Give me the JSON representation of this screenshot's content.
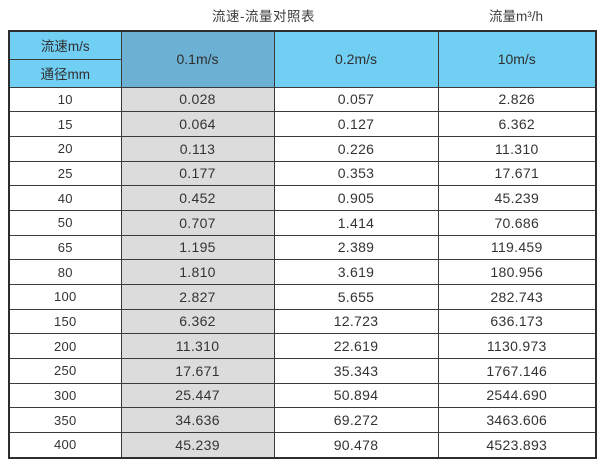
{
  "captions": {
    "title": "流速-流量对照表",
    "unit": "流量m³/h"
  },
  "table": {
    "header": {
      "velocity_label": "流速m/s",
      "diameter_label": "通径mm",
      "columns": [
        "0.1m/s",
        "0.2m/s",
        "10m/s"
      ]
    },
    "rows": [
      {
        "dn": "10",
        "v01": "0.028",
        "v02": "0.057",
        "v10": "2.826"
      },
      {
        "dn": "15",
        "v01": "0.064",
        "v02": "0.127",
        "v10": "6.362"
      },
      {
        "dn": "20",
        "v01": "0.113",
        "v02": "0.226",
        "v10": "11.310"
      },
      {
        "dn": "25",
        "v01": "0.177",
        "v02": "0.353",
        "v10": "17.671"
      },
      {
        "dn": "40",
        "v01": "0.452",
        "v02": "0.905",
        "v10": "45.239"
      },
      {
        "dn": "50",
        "v01": "0.707",
        "v02": "1.414",
        "v10": "70.686"
      },
      {
        "dn": "65",
        "v01": "1.195",
        "v02": "2.389",
        "v10": "119.459"
      },
      {
        "dn": "80",
        "v01": "1.810",
        "v02": "3.619",
        "v10": "180.956"
      },
      {
        "dn": "100",
        "v01": "2.827",
        "v02": "5.655",
        "v10": "282.743"
      },
      {
        "dn": "150",
        "v01": "6.362",
        "v02": "12.723",
        "v10": "636.173"
      },
      {
        "dn": "200",
        "v01": "11.310",
        "v02": "22.619",
        "v10": "1130.973"
      },
      {
        "dn": "250",
        "v01": "17.671",
        "v02": "35.343",
        "v10": "1767.146"
      },
      {
        "dn": "300",
        "v01": "25.447",
        "v02": "50.894",
        "v10": "2544.690"
      },
      {
        "dn": "350",
        "v01": "34.636",
        "v02": "69.272",
        "v10": "3463.606"
      },
      {
        "dn": "400",
        "v01": "45.239",
        "v02": "90.478",
        "v10": "4523.893"
      }
    ]
  },
  "colors": {
    "header_blue": "#72cff4",
    "header_steel_blue": "#6cb0d3",
    "shaded_column_gray": "#dcdcdc",
    "grid_border": "#3b3b3b",
    "text": "#333333"
  },
  "chart_data": {
    "type": "table",
    "title": "流速-流量对照表",
    "flow_unit": "流量m³/h",
    "row_header": "通径mm",
    "col_header": "流速m/s",
    "columns": [
      "0.1m/s",
      "0.2m/s",
      "10m/s"
    ],
    "diameters_mm": [
      10,
      15,
      20,
      25,
      40,
      50,
      65,
      80,
      100,
      150,
      200,
      250,
      300,
      350,
      400
    ],
    "series": [
      {
        "name": "0.1m/s",
        "values": [
          0.028,
          0.064,
          0.113,
          0.177,
          0.452,
          0.707,
          1.195,
          1.81,
          2.827,
          6.362,
          11.31,
          17.671,
          25.447,
          34.636,
          45.239
        ]
      },
      {
        "name": "0.2m/s",
        "values": [
          0.057,
          0.127,
          0.226,
          0.353,
          0.905,
          1.414,
          2.389,
          3.619,
          5.655,
          12.723,
          22.619,
          35.343,
          50.894,
          69.272,
          90.478
        ]
      },
      {
        "name": "10m/s",
        "values": [
          2.826,
          6.362,
          11.31,
          17.671,
          45.239,
          70.686,
          119.459,
          180.956,
          282.743,
          636.173,
          1130.973,
          1767.146,
          2544.69,
          3463.606,
          4523.893
        ]
      }
    ]
  }
}
